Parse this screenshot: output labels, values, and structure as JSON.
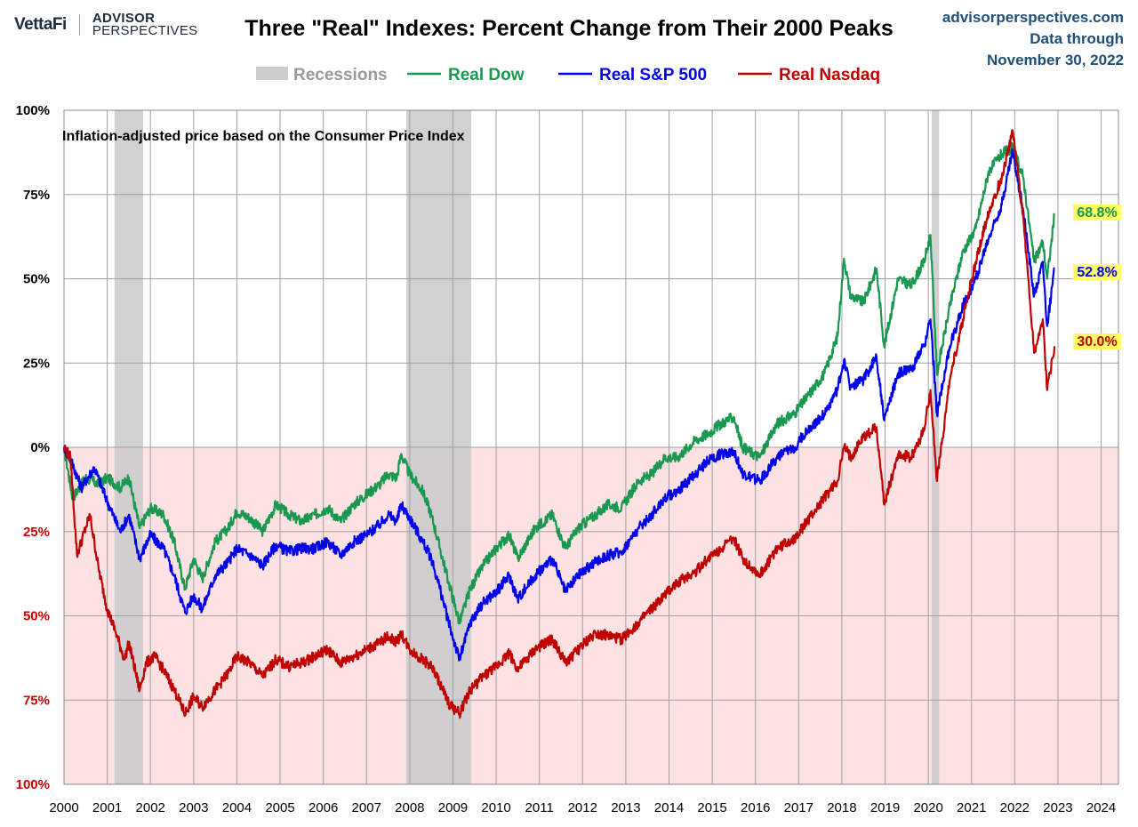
{
  "header": {
    "brand_vettafi": "VettaFi",
    "brand_ap_line1": "ADVISOR",
    "brand_ap_line2": "PERSPECTIVES",
    "source_site": "advisorperspectives.com",
    "source_line2": "Data through",
    "source_line3": "November 30, 2022"
  },
  "chart_data": {
    "type": "line",
    "title": "Three \"Real\" Indexes: Percent Change from Their 2000 Peaks",
    "subtitle": "Inflation-adjusted  price based on the Consumer Price Index",
    "xlim": [
      2000,
      2024.4
    ],
    "ylim": [
      -100,
      100
    ],
    "x_ticks": [
      "2000",
      "2001",
      "2002",
      "2003",
      "2004",
      "2005",
      "2006",
      "2007",
      "2008",
      "2009",
      "2010",
      "2011",
      "2012",
      "2013",
      "2014",
      "2015",
      "2016",
      "2017",
      "2018",
      "2019",
      "2020",
      "2021",
      "2022",
      "2023",
      "2024"
    ],
    "y_ticks": [
      {
        "value": 100,
        "label": "100%"
      },
      {
        "value": 75,
        "label": "75%"
      },
      {
        "value": 50,
        "label": "50%"
      },
      {
        "value": 25,
        "label": "25%"
      },
      {
        "value": 0,
        "label": "0%"
      },
      {
        "value": -25,
        "label": "25%"
      },
      {
        "value": -50,
        "label": "50%"
      },
      {
        "value": -75,
        "label": "75%"
      },
      {
        "value": -100,
        "label": "100%"
      }
    ],
    "grid": true,
    "legend_position": "top",
    "colors": {
      "recession": "#cccccc",
      "negative_zone": "#fde2e4",
      "positive_axis_text": "#000000",
      "negative_axis_text": "#cc0000"
    },
    "recessions": {
      "name": "Recessions",
      "periods": [
        [
          2001.17,
          2001.83
        ],
        [
          2007.92,
          2009.42
        ],
        [
          2020.08,
          2020.25
        ]
      ]
    },
    "series": [
      {
        "name": "Real Dow",
        "color": "#1a9850",
        "label_bg": "#ffff66",
        "end_label": "68.8%",
        "points": [
          [
            2000,
            0
          ],
          [
            2000.2,
            -15
          ],
          [
            2000.5,
            -9
          ],
          [
            2000.8,
            -11
          ],
          [
            2001,
            -9
          ],
          [
            2001.3,
            -12
          ],
          [
            2001.5,
            -9
          ],
          [
            2001.75,
            -24
          ],
          [
            2002,
            -18
          ],
          [
            2002.3,
            -20
          ],
          [
            2002.55,
            -28
          ],
          [
            2002.8,
            -42
          ],
          [
            2003,
            -33
          ],
          [
            2003.2,
            -39
          ],
          [
            2003.5,
            -28
          ],
          [
            2003.8,
            -24
          ],
          [
            2004,
            -19
          ],
          [
            2004.3,
            -21
          ],
          [
            2004.6,
            -25
          ],
          [
            2004.9,
            -17
          ],
          [
            2005.2,
            -20
          ],
          [
            2005.5,
            -22
          ],
          [
            2005.8,
            -20
          ],
          [
            2006.1,
            -18
          ],
          [
            2006.4,
            -22
          ],
          [
            2006.7,
            -17
          ],
          [
            2007,
            -14
          ],
          [
            2007.3,
            -11
          ],
          [
            2007.5,
            -8
          ],
          [
            2007.7,
            -9
          ],
          [
            2007.8,
            -2
          ],
          [
            2008,
            -8
          ],
          [
            2008.3,
            -13
          ],
          [
            2008.5,
            -20
          ],
          [
            2008.7,
            -30
          ],
          [
            2008.9,
            -40
          ],
          [
            2009.15,
            -52
          ],
          [
            2009.4,
            -42
          ],
          [
            2009.7,
            -35
          ],
          [
            2010,
            -30
          ],
          [
            2010.3,
            -26
          ],
          [
            2010.5,
            -33
          ],
          [
            2010.9,
            -24
          ],
          [
            2011.3,
            -20
          ],
          [
            2011.6,
            -30
          ],
          [
            2011.9,
            -24
          ],
          [
            2012.3,
            -20
          ],
          [
            2012.6,
            -17
          ],
          [
            2012.9,
            -18
          ],
          [
            2013.3,
            -10
          ],
          [
            2013.6,
            -8
          ],
          [
            2013.9,
            -3
          ],
          [
            2014.2,
            -3
          ],
          [
            2014.6,
            2
          ],
          [
            2014.9,
            4
          ],
          [
            2015.2,
            7
          ],
          [
            2015.5,
            9
          ],
          [
            2015.7,
            0
          ],
          [
            2016.1,
            -3
          ],
          [
            2016.5,
            7
          ],
          [
            2016.9,
            10
          ],
          [
            2017.2,
            15
          ],
          [
            2017.6,
            22
          ],
          [
            2017.9,
            33
          ],
          [
            2018.05,
            56
          ],
          [
            2018.2,
            45
          ],
          [
            2018.5,
            43
          ],
          [
            2018.8,
            53
          ],
          [
            2018.98,
            30
          ],
          [
            2019.3,
            50
          ],
          [
            2019.6,
            48
          ],
          [
            2019.9,
            55
          ],
          [
            2020.05,
            63
          ],
          [
            2020.2,
            22
          ],
          [
            2020.5,
            42
          ],
          [
            2020.8,
            58
          ],
          [
            2021.1,
            65
          ],
          [
            2021.4,
            82
          ],
          [
            2021.7,
            87
          ],
          [
            2021.95,
            89
          ],
          [
            2022.2,
            80
          ],
          [
            2022.45,
            55
          ],
          [
            2022.65,
            61
          ],
          [
            2022.75,
            50
          ],
          [
            2022.92,
            69
          ]
        ]
      },
      {
        "name": "Real S&P 500",
        "color": "#0000ee",
        "label_bg": "#ffff66",
        "end_label": "52.8%",
        "points": [
          [
            2000,
            0
          ],
          [
            2000.2,
            -5
          ],
          [
            2000.4,
            -12
          ],
          [
            2000.7,
            -6
          ],
          [
            2001,
            -16
          ],
          [
            2001.3,
            -25
          ],
          [
            2001.5,
            -20
          ],
          [
            2001.75,
            -33
          ],
          [
            2002,
            -26
          ],
          [
            2002.3,
            -30
          ],
          [
            2002.55,
            -38
          ],
          [
            2002.8,
            -49
          ],
          [
            2003,
            -44
          ],
          [
            2003.2,
            -48
          ],
          [
            2003.5,
            -38
          ],
          [
            2003.8,
            -34
          ],
          [
            2004,
            -30
          ],
          [
            2004.3,
            -32
          ],
          [
            2004.6,
            -35
          ],
          [
            2004.9,
            -29
          ],
          [
            2005.2,
            -31
          ],
          [
            2005.5,
            -30
          ],
          [
            2005.8,
            -30
          ],
          [
            2006.1,
            -28
          ],
          [
            2006.4,
            -32
          ],
          [
            2006.7,
            -28
          ],
          [
            2007,
            -26
          ],
          [
            2007.3,
            -23
          ],
          [
            2007.5,
            -20
          ],
          [
            2007.7,
            -22
          ],
          [
            2007.8,
            -17
          ],
          [
            2008,
            -21
          ],
          [
            2008.3,
            -28
          ],
          [
            2008.5,
            -33
          ],
          [
            2008.7,
            -42
          ],
          [
            2008.9,
            -52
          ],
          [
            2009.15,
            -63
          ],
          [
            2009.4,
            -52
          ],
          [
            2009.7,
            -46
          ],
          [
            2010,
            -43
          ],
          [
            2010.3,
            -38
          ],
          [
            2010.5,
            -45
          ],
          [
            2010.9,
            -38
          ],
          [
            2011.3,
            -33
          ],
          [
            2011.6,
            -43
          ],
          [
            2011.9,
            -38
          ],
          [
            2012.3,
            -34
          ],
          [
            2012.6,
            -32
          ],
          [
            2012.9,
            -31
          ],
          [
            2013.3,
            -24
          ],
          [
            2013.6,
            -20
          ],
          [
            2013.9,
            -15
          ],
          [
            2014.2,
            -13
          ],
          [
            2014.6,
            -8
          ],
          [
            2014.9,
            -4
          ],
          [
            2015.2,
            -2
          ],
          [
            2015.5,
            -1
          ],
          [
            2015.7,
            -8
          ],
          [
            2016.1,
            -10
          ],
          [
            2016.5,
            -3
          ],
          [
            2016.9,
            0
          ],
          [
            2017.2,
            5
          ],
          [
            2017.6,
            10
          ],
          [
            2017.9,
            17
          ],
          [
            2018.05,
            26
          ],
          [
            2018.2,
            18
          ],
          [
            2018.5,
            20
          ],
          [
            2018.8,
            27
          ],
          [
            2018.98,
            8
          ],
          [
            2019.3,
            22
          ],
          [
            2019.6,
            23
          ],
          [
            2019.9,
            30
          ],
          [
            2020.05,
            38
          ],
          [
            2020.2,
            10
          ],
          [
            2020.5,
            30
          ],
          [
            2020.8,
            42
          ],
          [
            2021.1,
            50
          ],
          [
            2021.4,
            62
          ],
          [
            2021.7,
            72
          ],
          [
            2021.95,
            88
          ],
          [
            2022.2,
            70
          ],
          [
            2022.45,
            45
          ],
          [
            2022.65,
            55
          ],
          [
            2022.75,
            36
          ],
          [
            2022.92,
            53
          ]
        ]
      },
      {
        "name": "Real Nasdaq",
        "color": "#c00000",
        "label_bg": "#ffff66",
        "end_label": "30.0%",
        "points": [
          [
            2000,
            0
          ],
          [
            2000.15,
            -3
          ],
          [
            2000.3,
            -32
          ],
          [
            2000.5,
            -24
          ],
          [
            2000.6,
            -20
          ],
          [
            2000.8,
            -36
          ],
          [
            2001,
            -48
          ],
          [
            2001.2,
            -55
          ],
          [
            2001.4,
            -63
          ],
          [
            2001.5,
            -58
          ],
          [
            2001.75,
            -72
          ],
          [
            2001.9,
            -64
          ],
          [
            2002.1,
            -62
          ],
          [
            2002.3,
            -66
          ],
          [
            2002.55,
            -72
          ],
          [
            2002.8,
            -79
          ],
          [
            2003,
            -74
          ],
          [
            2003.2,
            -77
          ],
          [
            2003.5,
            -72
          ],
          [
            2003.8,
            -67
          ],
          [
            2004,
            -62
          ],
          [
            2004.3,
            -64
          ],
          [
            2004.6,
            -68
          ],
          [
            2004.9,
            -63
          ],
          [
            2005.2,
            -65
          ],
          [
            2005.5,
            -64
          ],
          [
            2005.8,
            -62
          ],
          [
            2006.1,
            -60
          ],
          [
            2006.4,
            -64
          ],
          [
            2006.7,
            -62
          ],
          [
            2007,
            -60
          ],
          [
            2007.3,
            -58
          ],
          [
            2007.5,
            -56
          ],
          [
            2007.7,
            -58
          ],
          [
            2007.8,
            -55
          ],
          [
            2008,
            -60
          ],
          [
            2008.3,
            -63
          ],
          [
            2008.5,
            -65
          ],
          [
            2008.7,
            -70
          ],
          [
            2008.9,
            -76
          ],
          [
            2009.15,
            -79
          ],
          [
            2009.4,
            -72
          ],
          [
            2009.7,
            -68
          ],
          [
            2010,
            -65
          ],
          [
            2010.3,
            -61
          ],
          [
            2010.5,
            -66
          ],
          [
            2010.9,
            -60
          ],
          [
            2011.3,
            -57
          ],
          [
            2011.6,
            -64
          ],
          [
            2011.9,
            -60
          ],
          [
            2012.3,
            -55
          ],
          [
            2012.6,
            -56
          ],
          [
            2012.9,
            -57
          ],
          [
            2013.3,
            -52
          ],
          [
            2013.6,
            -48
          ],
          [
            2013.9,
            -44
          ],
          [
            2014.2,
            -40
          ],
          [
            2014.6,
            -37
          ],
          [
            2014.9,
            -33
          ],
          [
            2015.2,
            -30
          ],
          [
            2015.5,
            -27
          ],
          [
            2015.7,
            -33
          ],
          [
            2016.1,
            -38
          ],
          [
            2016.5,
            -30
          ],
          [
            2016.9,
            -27
          ],
          [
            2017.2,
            -22
          ],
          [
            2017.6,
            -15
          ],
          [
            2017.9,
            -10
          ],
          [
            2018.05,
            0
          ],
          [
            2018.2,
            -3
          ],
          [
            2018.5,
            3
          ],
          [
            2018.8,
            6
          ],
          [
            2018.98,
            -17
          ],
          [
            2019.3,
            -2
          ],
          [
            2019.6,
            -3
          ],
          [
            2019.9,
            5
          ],
          [
            2020.05,
            17
          ],
          [
            2020.2,
            -10
          ],
          [
            2020.5,
            20
          ],
          [
            2020.8,
            38
          ],
          [
            2021.1,
            55
          ],
          [
            2021.4,
            70
          ],
          [
            2021.7,
            80
          ],
          [
            2021.95,
            94
          ],
          [
            2022.2,
            68
          ],
          [
            2022.45,
            28
          ],
          [
            2022.65,
            38
          ],
          [
            2022.75,
            17
          ],
          [
            2022.92,
            30
          ]
        ]
      }
    ]
  }
}
